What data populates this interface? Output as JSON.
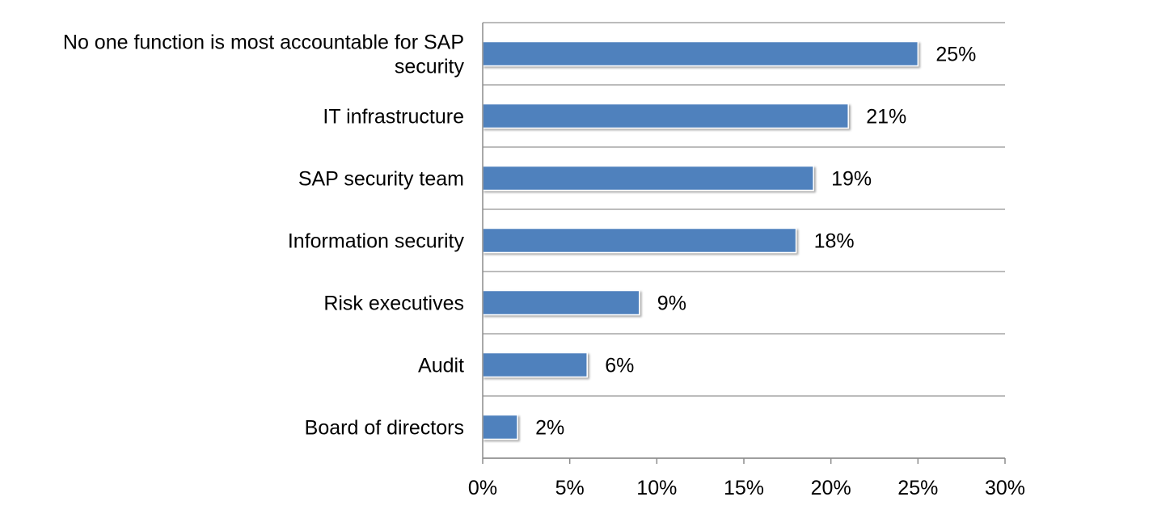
{
  "chart_data": {
    "type": "bar",
    "orientation": "horizontal",
    "title": "",
    "xlabel": "",
    "ylabel": "",
    "categories": [
      "No one function is most accountable for SAP security",
      "IT infrastructure",
      "SAP security team",
      "Information security",
      "Risk executives",
      "Audit",
      "Board of directors"
    ],
    "category_lines": [
      [
        "No one function is most accountable for SAP",
        "security"
      ],
      [
        "IT infrastructure"
      ],
      [
        "SAP security team"
      ],
      [
        "Information security"
      ],
      [
        "Risk executives"
      ],
      [
        "Audit"
      ],
      [
        "Board of directors"
      ]
    ],
    "values": [
      25,
      21,
      19,
      18,
      9,
      6,
      2
    ],
    "data_labels": [
      "25%",
      "21%",
      "19%",
      "18%",
      "9%",
      "6%",
      "2%"
    ],
    "xlim": [
      0,
      30
    ],
    "ticks": [
      0,
      5,
      10,
      15,
      20,
      25,
      30
    ],
    "tick_labels": [
      "0%",
      "5%",
      "10%",
      "15%",
      "20%",
      "25%",
      "30%"
    ],
    "grid": true,
    "legend": "none",
    "colors": {
      "bar": "#4f81bd",
      "bar_edge": "#ffffff",
      "grid": "#a6a6a6",
      "axis": "#8c8c8c"
    }
  }
}
